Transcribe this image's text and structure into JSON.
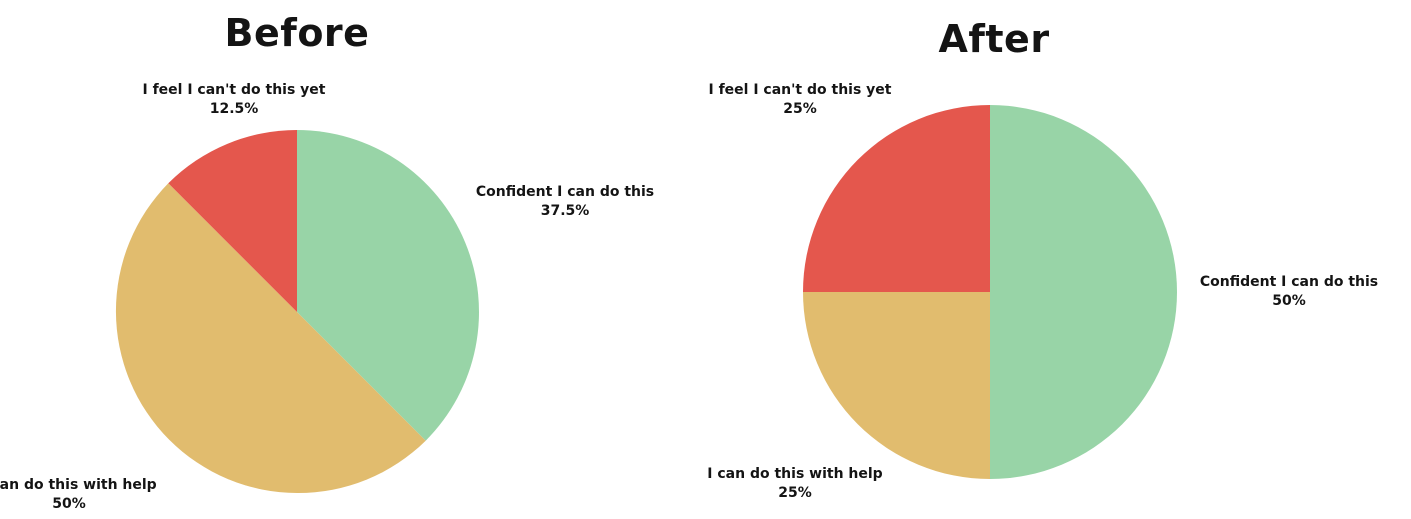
{
  "chart_data": [
    {
      "type": "pie",
      "title": "Before",
      "slices": [
        {
          "label": "Confident I can do this",
          "value": 37.5,
          "value_label": "37.5%",
          "color": "#98d4a7"
        },
        {
          "label": "I can do this with help",
          "value": 50,
          "value_label": "50%",
          "color": "#e1bc6e"
        },
        {
          "label": "I feel I can't do this yet",
          "value": 12.5,
          "value_label": "12.5%",
          "color": "#e4574d"
        }
      ]
    },
    {
      "type": "pie",
      "title": "After",
      "slices": [
        {
          "label": "Confident I can do this",
          "value": 50,
          "value_label": "50%",
          "color": "#98d4a7"
        },
        {
          "label": "I can do this with help",
          "value": 25,
          "value_label": "25%",
          "color": "#e1bc6e"
        },
        {
          "label": "I feel I can't do this yet",
          "value": 25,
          "value_label": "25%",
          "color": "#e4574d"
        }
      ]
    }
  ]
}
